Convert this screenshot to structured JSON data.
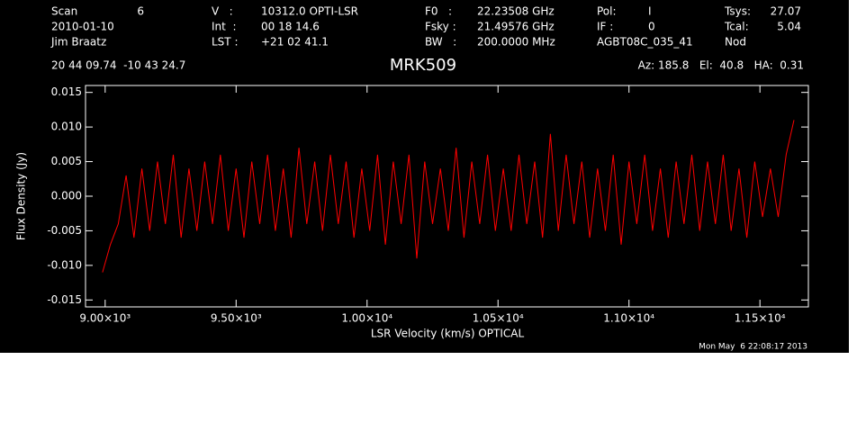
{
  "chart_data": {
    "type": "line",
    "title": "MRK509",
    "header": [
      [
        "Scan",
        "6",
        "V   :",
        "10312.0 OPTI-LSR",
        "F0   :",
        "22.23508 GHz",
        "Pol:",
        "I",
        "Tsys:",
        "27.07"
      ],
      [
        "2010-01-10",
        "",
        "Int  :",
        "00 18 14.6",
        "Fsky :",
        "21.49576 GHz",
        "IF :",
        "0",
        "Tcal:",
        "5.04"
      ],
      [
        "Jim Braatz",
        "",
        "LST :",
        "+21 02 41.1",
        "BW   :",
        "200.0000 MHz",
        "AGBT08C_035_41",
        "",
        "Nod",
        ""
      ]
    ],
    "position": "20 44 09.74  -10 43 24.7",
    "pointing": "Az: 185.8   El:  40.8   HA:  0.31",
    "timestamp": "Mon May  6 22:08:17 2013",
    "xlabel": "LSR Velocity (km/s) OPTICAL",
    "ylabel": "Flux Density (Jy)",
    "color": "#ff0000",
    "xlim": [
      8925,
      11685
    ],
    "ylim": [
      -0.016,
      0.016
    ],
    "xticks": [
      {
        "value": 9000,
        "label": "9.00×10³"
      },
      {
        "value": 9500,
        "label": "9.50×10³"
      },
      {
        "value": 10000,
        "label": "1.00×10⁴"
      },
      {
        "value": 10500,
        "label": "1.05×10⁴"
      },
      {
        "value": 11000,
        "label": "1.10×10⁴"
      },
      {
        "value": 11500,
        "label": "1.15×10⁴"
      }
    ],
    "yticks": [
      0.015,
      {
        "value": 0.01,
        "label": "0.010"
      },
      0.005,
      {
        "value": 0,
        "label": "0.000"
      },
      -0.005,
      {
        "value": -0.01,
        "label": "-0.010"
      },
      -0.015
    ],
    "x": [
      8990,
      9020,
      9050,
      9080,
      9110,
      9140,
      9170,
      9200,
      9230,
      9260,
      9290,
      9320,
      9350,
      9380,
      9410,
      9440,
      9470,
      9500,
      9530,
      9560,
      9590,
      9620,
      9650,
      9680,
      9710,
      9740,
      9770,
      9800,
      9830,
      9860,
      9890,
      9920,
      9950,
      9980,
      10010,
      10040,
      10070,
      10100,
      10130,
      10160,
      10190,
      10220,
      10250,
      10280,
      10310,
      10340,
      10370,
      10400,
      10430,
      10460,
      10490,
      10520,
      10550,
      10580,
      10610,
      10640,
      10670,
      10700,
      10730,
      10760,
      10790,
      10820,
      10850,
      10880,
      10910,
      10940,
      10970,
      11000,
      11030,
      11060,
      11090,
      11120,
      11150,
      11180,
      11210,
      11240,
      11270,
      11300,
      11330,
      11360,
      11390,
      11420,
      11450,
      11480,
      11510,
      11540,
      11570,
      11600,
      11630
    ],
    "values": [
      -0.011,
      -0.007,
      -0.004,
      0.003,
      -0.006,
      0.004,
      -0.005,
      0.005,
      -0.004,
      0.006,
      -0.006,
      0.004,
      -0.005,
      0.005,
      -0.004,
      0.006,
      -0.005,
      0.004,
      -0.006,
      0.005,
      -0.004,
      0.006,
      -0.005,
      0.004,
      -0.006,
      0.007,
      -0.004,
      0.005,
      -0.005,
      0.006,
      -0.004,
      0.005,
      -0.006,
      0.004,
      -0.005,
      0.006,
      -0.007,
      0.005,
      -0.004,
      0.006,
      -0.009,
      0.005,
      -0.004,
      0.004,
      -0.005,
      0.007,
      -0.006,
      0.005,
      -0.004,
      0.006,
      -0.005,
      0.004,
      -0.005,
      0.006,
      -0.004,
      0.005,
      -0.006,
      0.009,
      -0.005,
      0.006,
      -0.004,
      0.005,
      -0.006,
      0.004,
      -0.005,
      0.006,
      -0.007,
      0.005,
      -0.004,
      0.006,
      -0.005,
      0.004,
      -0.006,
      0.005,
      -0.004,
      0.006,
      -0.005,
      0.005,
      -0.004,
      0.006,
      -0.005,
      0.004,
      -0.006,
      0.005,
      -0.003,
      0.004,
      -0.003,
      0.006,
      0.011
    ]
  }
}
